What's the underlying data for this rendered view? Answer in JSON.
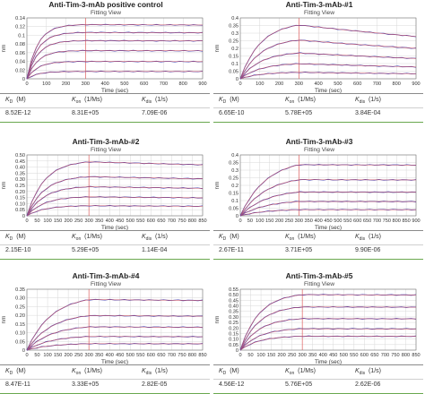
{
  "common": {
    "subtitle": "Fitting View",
    "xlabel": "Time (sec)",
    "ylabel": "nm",
    "params": [
      {
        "sym": "K",
        "sub": "D",
        "unit": "(M)"
      },
      {
        "sym": "K",
        "sub": "on",
        "unit": "(1/Ms)"
      },
      {
        "sym": "K",
        "sub": "dis",
        "unit": "(1/s)"
      }
    ]
  },
  "colors": {
    "data": "#3b3bb3",
    "fit": "#e06060",
    "vline": "#e06060",
    "grid": "#d8d8d8",
    "table_accent": "#6aa84f"
  },
  "panels": [
    {
      "title": "Anti-Tim-3-mAb positive control",
      "values": [
        "8.52E-12",
        "8.31E+05",
        "7.09E-06"
      ]
    },
    {
      "title": "Anti-Tim-3-mAb-#1",
      "values": [
        "6.65E-10",
        "5.78E+05",
        "3.84E-04"
      ]
    },
    {
      "title": "Anti-Tim-3-mAb-#2",
      "values": [
        "2.15E-10",
        "5.29E+05",
        "1.14E-04"
      ]
    },
    {
      "title": "Anti-Tim-3-mAb-#3",
      "values": [
        "2.67E-11",
        "3.71E+05",
        "9.90E-06"
      ]
    },
    {
      "title": "Anti-Tim-3-mAb-#4",
      "values": [
        "8.47E-11",
        "3.33E+05",
        "2.82E-05"
      ]
    },
    {
      "title": "Anti-Tim-3-mAb-#5",
      "values": [
        "4.56E-12",
        "5.76E+05",
        "2.62E-06"
      ]
    }
  ],
  "chart_data": [
    {
      "type": "line",
      "title": "Anti-Tim-3-mAb positive control",
      "xlabel": "Time (sec)",
      "ylabel": "nm",
      "xlim": [
        0,
        900
      ],
      "ylim": [
        0,
        0.14
      ],
      "xticks": [
        0,
        100,
        200,
        300,
        400,
        500,
        600,
        700,
        800,
        900
      ],
      "yticks": [
        0,
        0.02,
        0.04,
        0.06,
        0.08,
        0.1,
        0.12,
        0.14
      ],
      "ytick_labels": [
        "0",
        "0.02",
        "0.04",
        "0.06",
        "0.08",
        "0.1",
        "0.12",
        "0.14"
      ],
      "x_break": 300,
      "assoc_k": 0.018,
      "dissoc_k": 1e-05,
      "n_points": 38,
      "plateaus": [
        0.125,
        0.107,
        0.088,
        0.065,
        0.04,
        0.017
      ]
    },
    {
      "type": "line",
      "title": "Anti-Tim-3-mAb-#1",
      "xlabel": "Time (sec)",
      "ylabel": "nm",
      "xlim": [
        0,
        900
      ],
      "ylim": [
        0,
        0.4
      ],
      "xticks": [
        0,
        100,
        200,
        300,
        400,
        500,
        600,
        700,
        800,
        900
      ],
      "yticks": [
        0,
        0.05,
        0.1,
        0.15,
        0.2,
        0.25,
        0.3,
        0.35,
        0.4
      ],
      "ytick_labels": [
        "0",
        "0.05",
        "0.1",
        "0.15",
        "0.2",
        "0.25",
        "0.3",
        "0.35",
        "0.4"
      ],
      "x_break": 300,
      "assoc_k": 0.0095,
      "dissoc_k": 0.0004,
      "n_points": 38,
      "plateaus": [
        0.375,
        0.27,
        0.18,
        0.105,
        0.045
      ]
    },
    {
      "type": "line",
      "title": "Anti-Tim-3-mAb-#2",
      "xlabel": "Time (sec)",
      "ylabel": "nm",
      "xlim": [
        0,
        850
      ],
      "ylim": [
        0,
        0.5
      ],
      "xticks": [
        0,
        50,
        100,
        150,
        200,
        250,
        300,
        350,
        400,
        450,
        500,
        550,
        600,
        650,
        700,
        750,
        800,
        850
      ],
      "yticks": [
        0,
        0.05,
        0.1,
        0.15,
        0.2,
        0.25,
        0.3,
        0.35,
        0.4,
        0.45,
        0.5
      ],
      "ytick_labels": [
        "0",
        "0.05",
        "0.10",
        "0.15",
        "0.20",
        "0.25",
        "0.30",
        "0.35",
        "0.40",
        "0.45",
        "0.50"
      ],
      "x_break": 300,
      "assoc_k": 0.012,
      "dissoc_k": 0.0001,
      "n_points": 36,
      "plateaus": [
        0.455,
        0.33,
        0.245,
        0.16,
        0.085
      ]
    },
    {
      "type": "line",
      "title": "Anti-Tim-3-mAb-#3",
      "xlabel": "Time (sec)",
      "ylabel": "nm",
      "xlim": [
        0,
        900
      ],
      "ylim": [
        0,
        0.4
      ],
      "xticks": [
        0,
        50,
        100,
        150,
        200,
        250,
        300,
        350,
        400,
        450,
        500,
        550,
        600,
        650,
        700,
        750,
        800,
        850,
        900
      ],
      "yticks": [
        0,
        0.05,
        0.1,
        0.15,
        0.2,
        0.25,
        0.3,
        0.35,
        0.4
      ],
      "ytick_labels": [
        "0",
        "0.05",
        "0.1",
        "0.15",
        "0.2",
        "0.25",
        "0.3",
        "0.35",
        "0.4"
      ],
      "x_break": 300,
      "assoc_k": 0.0075,
      "dissoc_k": 1e-05,
      "n_points": 38,
      "plateaus": [
        0.375,
        0.265,
        0.175,
        0.105,
        0.045
      ]
    },
    {
      "type": "line",
      "title": "Anti-Tim-3-mAb-#4",
      "xlabel": "Time (sec)",
      "ylabel": "nm",
      "xlim": [
        0,
        850
      ],
      "ylim": [
        0,
        0.35
      ],
      "xticks": [
        0,
        50,
        100,
        150,
        200,
        250,
        300,
        350,
        400,
        450,
        500,
        550,
        600,
        650,
        700,
        750,
        800,
        850
      ],
      "yticks": [
        0,
        0.05,
        0.1,
        0.15,
        0.2,
        0.25,
        0.3,
        0.35
      ],
      "ytick_labels": [
        "0",
        "0.05",
        "0.10",
        "0.15",
        "0.20",
        "0.25",
        "0.30",
        "0.35"
      ],
      "x_break": 300,
      "assoc_k": 0.0085,
      "dissoc_k": 3e-05,
      "n_points": 36,
      "plateaus": [
        0.315,
        0.215,
        0.145,
        0.085,
        0.04
      ]
    },
    {
      "type": "line",
      "title": "Anti-Tim-3-mAb-#5",
      "xlabel": "Time (sec)",
      "ylabel": "nm",
      "xlim": [
        0,
        850
      ],
      "ylim": [
        0,
        0.55
      ],
      "xticks": [
        0,
        50,
        100,
        150,
        200,
        250,
        300,
        350,
        400,
        450,
        500,
        550,
        600,
        650,
        700,
        750,
        800,
        850
      ],
      "yticks": [
        0,
        0.05,
        0.1,
        0.15,
        0.2,
        0.25,
        0.3,
        0.35,
        0.4,
        0.45,
        0.5,
        0.55
      ],
      "ytick_labels": [
        "0",
        "0.05",
        "0.10",
        "0.15",
        "0.20",
        "0.25",
        "0.30",
        "0.35",
        "0.40",
        "0.45",
        "0.50",
        "0.55"
      ],
      "x_break": 300,
      "assoc_k": 0.011,
      "dissoc_k": 1e-05,
      "n_points": 36,
      "plateaus": [
        0.52,
        0.405,
        0.295,
        0.2,
        0.13
      ]
    }
  ]
}
